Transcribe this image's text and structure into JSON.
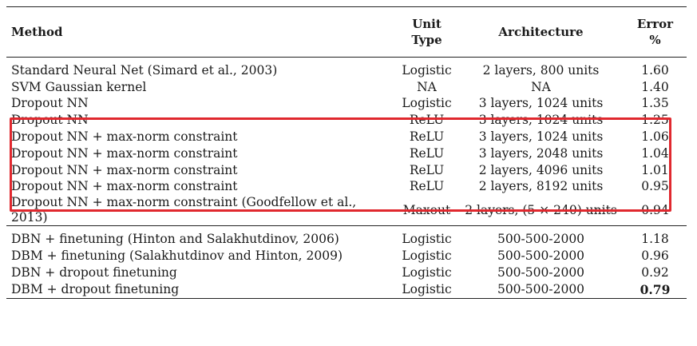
{
  "table": {
    "headers": {
      "method": "Method",
      "unit_type_line1": "Unit",
      "unit_type_line2": "Type",
      "architecture": "Architecture",
      "error_line1": "Error",
      "error_line2": "%"
    },
    "groups": [
      {
        "rows": [
          {
            "method": "Standard Neural Net (Simard et al., 2003)",
            "unit": "Logistic",
            "architecture": "2 layers, 800 units",
            "error": "1.60"
          },
          {
            "method": "SVM Gaussian kernel",
            "unit": "NA",
            "architecture": "NA",
            "error": "1.40"
          },
          {
            "method": "Dropout NN",
            "unit": "Logistic",
            "architecture": "3 layers, 1024 units",
            "error": "1.35"
          },
          {
            "method": "Dropout NN",
            "unit": "ReLU",
            "architecture": "3 layers, 1024 units",
            "error": "1.25"
          },
          {
            "method": "Dropout NN + max-norm constraint",
            "unit": "ReLU",
            "architecture": "3 layers, 1024 units",
            "error": "1.06"
          },
          {
            "method": "Dropout NN + max-norm constraint",
            "unit": "ReLU",
            "architecture": "3 layers, 2048 units",
            "error": "1.04"
          },
          {
            "method": "Dropout NN + max-norm constraint",
            "unit": "ReLU",
            "architecture": "2 layers, 4096 units",
            "error": "1.01"
          },
          {
            "method": "Dropout NN + max-norm constraint",
            "unit": "ReLU",
            "architecture": "2 layers, 8192 units",
            "error": "0.95"
          },
          {
            "method": "Dropout NN + max-norm constraint (Goodfellow et al., 2013)",
            "unit": "Maxout",
            "architecture": "2 layers, (5 × 240) units",
            "error": "0.94"
          }
        ]
      },
      {
        "rows": [
          {
            "method": "DBN + finetuning (Hinton and Salakhutdinov, 2006)",
            "unit": "Logistic",
            "architecture": "500-500-2000",
            "error": "1.18"
          },
          {
            "method": "DBM + finetuning (Salakhutdinov and Hinton, 2009)",
            "unit": "Logistic",
            "architecture": "500-500-2000",
            "error": "0.96"
          },
          {
            "method": "DBN + dropout finetuning",
            "unit": "Logistic",
            "architecture": "500-500-2000",
            "error": "0.92"
          },
          {
            "method": "DBM + dropout finetuning",
            "unit": "Logistic",
            "architecture": "500-500-2000",
            "error": "0.79"
          }
        ]
      }
    ],
    "best_error": "0.79",
    "highlight_color": "#e0282e"
  }
}
